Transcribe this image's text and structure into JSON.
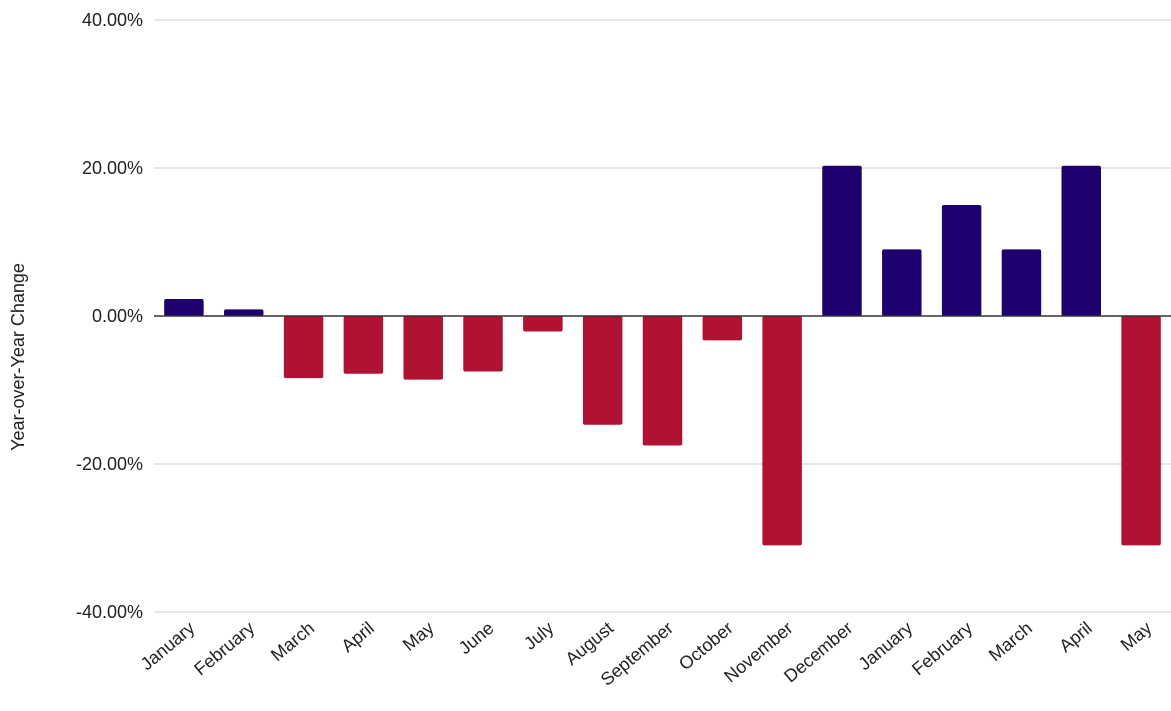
{
  "chart_data": {
    "type": "bar",
    "title": "",
    "xlabel": "",
    "ylabel": "Year-over-Year Change",
    "ylim": [
      -40,
      40
    ],
    "y_ticks": [
      40,
      20,
      0,
      -20,
      -40
    ],
    "y_tick_labels": [
      "40.00%",
      "20.00%",
      "0.00%",
      "-20.00%",
      "-40.00%"
    ],
    "grid": true,
    "categories": [
      "January",
      "February",
      "March",
      "April",
      "May",
      "June",
      "July",
      "August",
      "September",
      "October",
      "November",
      "December",
      "January",
      "February",
      "March",
      "April",
      "May"
    ],
    "values": [
      2.3,
      0.9,
      -8.4,
      -7.8,
      -8.6,
      -7.5,
      -2.1,
      -14.7,
      -17.5,
      -3.3,
      -31.0,
      20.3,
      9.0,
      15.0,
      9.0,
      20.3,
      -31.0
    ],
    "colors": {
      "positive": "#1f006f",
      "negative": "#b01233"
    }
  }
}
